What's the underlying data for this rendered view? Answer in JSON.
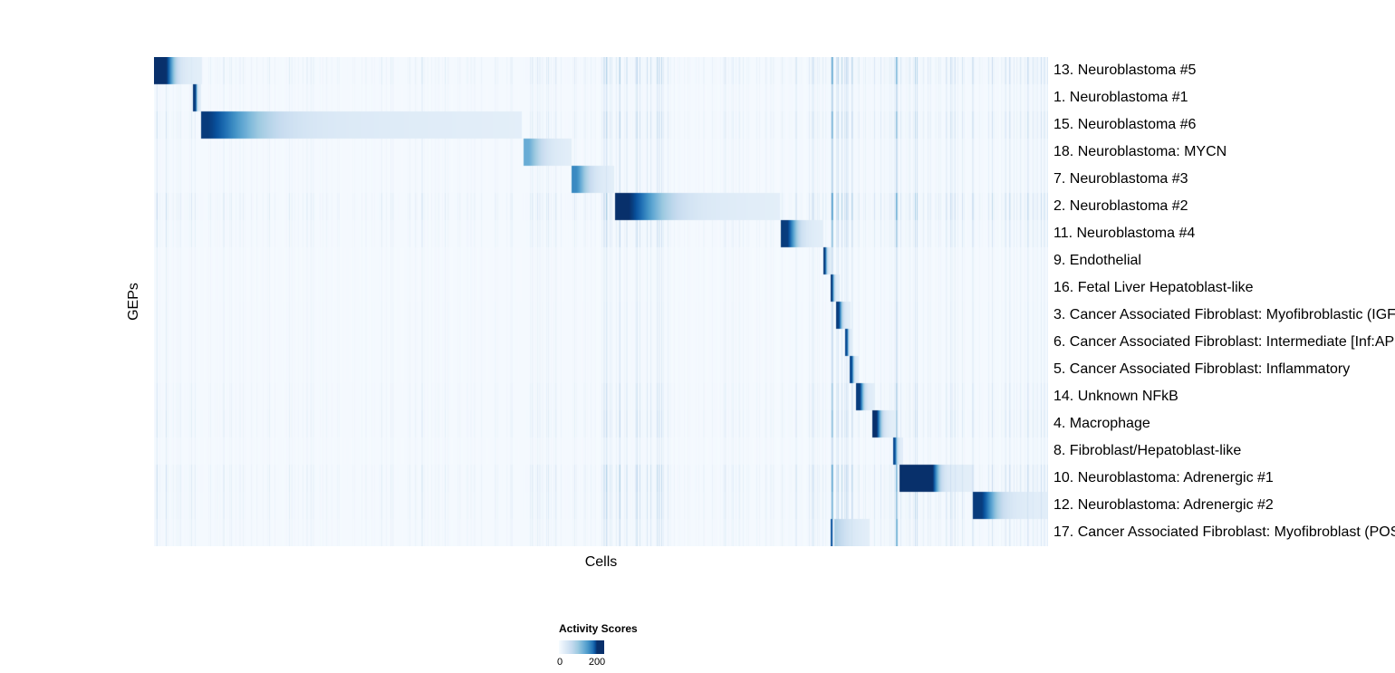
{
  "chart_data": {
    "type": "heatmap",
    "title": "",
    "xlabel": "Cells",
    "ylabel": "GEPs",
    "legend": {
      "title": "Activity Scores",
      "min": 0,
      "max": 200,
      "tick_labels": [
        "0",
        "200"
      ]
    },
    "colormap_name": "Blues",
    "colormap_stops": [
      "#f7fbff",
      "#deebf7",
      "#c6dbef",
      "#9ecae1",
      "#6baed6",
      "#4292c6",
      "#2171b5",
      "#08519c",
      "#08306b"
    ],
    "column_lines": [
      {
        "pos": 0.7575,
        "strength": 0.6
      },
      {
        "pos": 0.83,
        "strength": 0.5
      }
    ],
    "rows": [
      {
        "label": "13. Neuroblastoma #5",
        "block_start": 0.0,
        "block_end": 0.053,
        "peak": 0.85,
        "noise": 0.9,
        "plateau": 0.25,
        "decay": 10
      },
      {
        "label": "1. Neuroblastoma #1",
        "block_start": 0.0435,
        "block_end": 0.052,
        "peak": 0.8,
        "noise": 0.5,
        "plateau": 0.3,
        "decay": 8
      },
      {
        "label": "15. Neuroblastoma #6",
        "block_start": 0.052,
        "block_end": 0.411,
        "peak": 0.8,
        "noise": 0.8,
        "plateau": 0.02,
        "decay": 16
      },
      {
        "label": "18. Neuroblastoma: MYCN",
        "block_start": 0.413,
        "block_end": 0.467,
        "peak": 0.35,
        "noise": 0.5,
        "plateau": 0.1,
        "decay": 6
      },
      {
        "label": "7. Neuroblastoma #3",
        "block_start": 0.467,
        "block_end": 0.514,
        "peak": 0.5,
        "noise": 0.5,
        "plateau": 0.1,
        "decay": 6
      },
      {
        "label": "2. Neuroblastoma #2",
        "block_start": 0.5147,
        "block_end": 0.7,
        "peak": 0.85,
        "noise": 1.0,
        "plateau": 0.08,
        "decay": 10
      },
      {
        "label": "11. Neuroblastoma #4",
        "block_start": 0.701,
        "block_end": 0.748,
        "peak": 0.8,
        "noise": 0.7,
        "plateau": 0.15,
        "decay": 8
      },
      {
        "label": "9. Endothelial",
        "block_start": 0.748,
        "block_end": 0.758,
        "peak": 0.8,
        "noise": 0.35,
        "plateau": 0.2,
        "decay": 8
      },
      {
        "label": "16. Fetal Liver Hepatoblast-like",
        "block_start": 0.756,
        "block_end": 0.766,
        "peak": 0.8,
        "noise": 0.35,
        "plateau": 0.2,
        "decay": 8
      },
      {
        "label": "3. Cancer Associated Fibroblast: Myofibroblastic (IGF",
        "block_start": 0.762,
        "block_end": 0.779,
        "peak": 0.8,
        "noise": 0.4,
        "plateau": 0.2,
        "decay": 8
      },
      {
        "label": "6. Cancer Associated Fibroblast: Intermediate [Inf:AP",
        "block_start": 0.773,
        "block_end": 0.781,
        "peak": 0.75,
        "noise": 0.4,
        "plateau": 0.2,
        "decay": 8
      },
      {
        "label": "5. Cancer Associated Fibroblast: Inflammatory",
        "block_start": 0.778,
        "block_end": 0.788,
        "peak": 0.75,
        "noise": 0.4,
        "plateau": 0.2,
        "decay": 8
      },
      {
        "label": "14. Unknown NFkB",
        "block_start": 0.785,
        "block_end": 0.805,
        "peak": 0.8,
        "noise": 0.6,
        "plateau": 0.2,
        "decay": 8
      },
      {
        "label": "4. Macrophage",
        "block_start": 0.803,
        "block_end": 0.827,
        "peak": 0.85,
        "noise": 0.7,
        "plateau": 0.2,
        "decay": 8
      },
      {
        "label": "8. Fibroblast/Hepatoblast-like",
        "block_start": 0.826,
        "block_end": 0.837,
        "peak": 0.75,
        "noise": 0.4,
        "plateau": 0.2,
        "decay": 8
      },
      {
        "label": "10. Neuroblastoma: Adrenergic #1",
        "block_start": 0.833,
        "block_end": 0.914,
        "peak": 0.95,
        "noise": 0.9,
        "plateau": 0.45,
        "decay": 14
      },
      {
        "label": "12. Neuroblastoma: Adrenergic #2",
        "block_start": 0.915,
        "block_end": 1.0,
        "peak": 0.8,
        "noise": 0.8,
        "plateau": 0.12,
        "decay": 10
      },
      {
        "label": "17. Cancer Associated Fibroblast: Myofibroblast (POS",
        "block_start": 0.76,
        "block_end": 0.8,
        "peak": 0.18,
        "noise": 0.6,
        "plateau": 0.0,
        "decay": 5,
        "spikes": [
          {
            "pos": 0.7575,
            "value": 0.85,
            "width": 0.0012
          },
          {
            "pos": 0.83,
            "value": 0.45,
            "width": 0.001
          }
        ]
      }
    ]
  }
}
